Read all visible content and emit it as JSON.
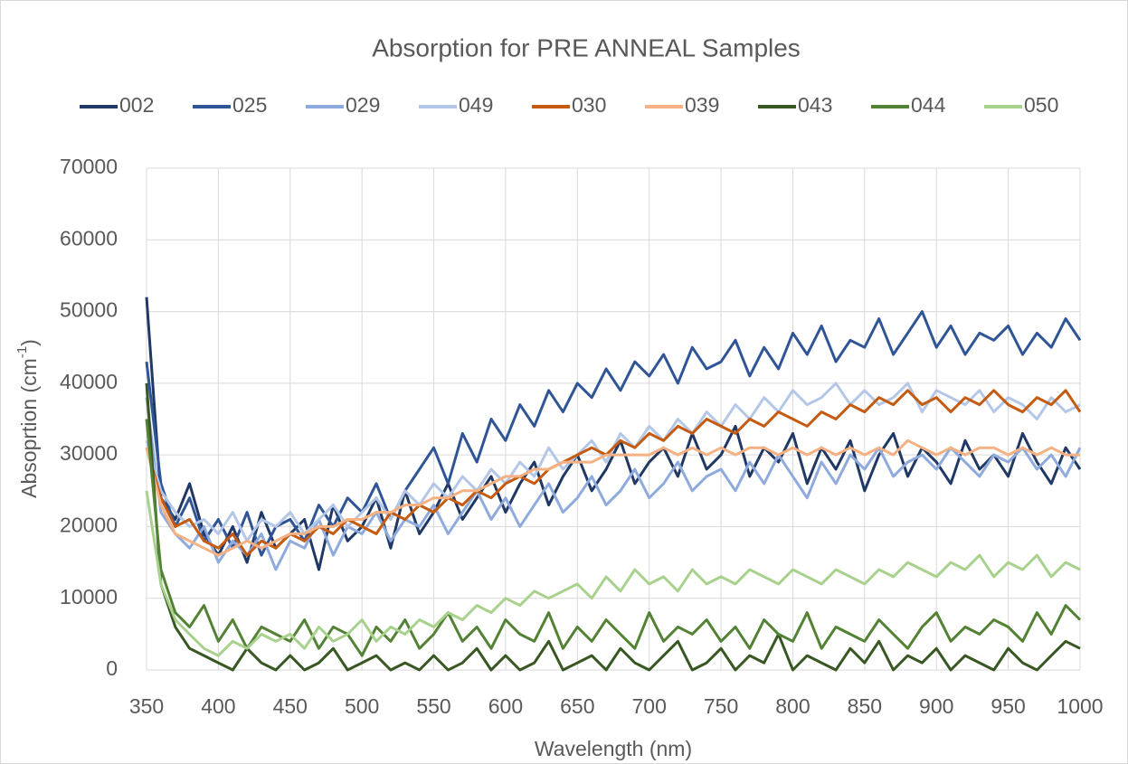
{
  "chart_data": {
    "type": "line",
    "title": "Absorption for PRE ANNEAL Samples",
    "x_label": "Wavelength (nm)",
    "y_label": {
      "text": "Absoprtion (cm",
      "superscript": "-1",
      "suffix": ")"
    },
    "xlim": [
      350,
      1000
    ],
    "xticks": [
      350,
      400,
      450,
      500,
      550,
      600,
      650,
      700,
      750,
      800,
      850,
      900,
      950,
      1000
    ],
    "ylim": [
      0,
      70000
    ],
    "yticks": [
      0,
      10000,
      20000,
      30000,
      40000,
      50000,
      60000,
      70000
    ],
    "grid": true,
    "legend": "top",
    "x": [
      350,
      360,
      370,
      380,
      390,
      400,
      410,
      420,
      430,
      440,
      450,
      460,
      470,
      480,
      490,
      500,
      510,
      520,
      530,
      540,
      550,
      560,
      570,
      580,
      590,
      600,
      610,
      620,
      630,
      640,
      650,
      660,
      670,
      680,
      690,
      700,
      710,
      720,
      730,
      740,
      750,
      760,
      770,
      780,
      790,
      800,
      810,
      820,
      830,
      840,
      850,
      860,
      870,
      880,
      890,
      900,
      910,
      920,
      930,
      940,
      950,
      960,
      970,
      980,
      990,
      1000
    ],
    "series": [
      {
        "name": "002",
        "color": "#203864",
        "values": [
          52000,
          24000,
          21000,
          26000,
          19000,
          16000,
          20000,
          15000,
          22000,
          17000,
          19000,
          21000,
          14000,
          23000,
          18000,
          20000,
          24000,
          17000,
          25000,
          19000,
          22000,
          26000,
          21000,
          24000,
          27000,
          22000,
          26000,
          29000,
          23000,
          27000,
          30000,
          25000,
          28000,
          32000,
          26000,
          29000,
          31000,
          27000,
          33000,
          28000,
          30000,
          34000,
          27000,
          31000,
          29000,
          33000,
          26000,
          31000,
          28000,
          32000,
          25000,
          30000,
          33000,
          27000,
          31000,
          29000,
          26000,
          32000,
          28000,
          30000,
          27000,
          33000,
          29000,
          26000,
          31000,
          28000
        ]
      },
      {
        "name": "025",
        "color": "#2f5597",
        "values": [
          43000,
          26000,
          20000,
          24000,
          18000,
          21000,
          17000,
          22000,
          16000,
          20000,
          21000,
          18000,
          23000,
          20000,
          24000,
          22000,
          26000,
          21000,
          25000,
          28000,
          31000,
          26000,
          33000,
          29000,
          35000,
          32000,
          37000,
          34000,
          39000,
          36000,
          40000,
          38000,
          42000,
          39000,
          43000,
          41000,
          44000,
          40000,
          45000,
          42000,
          43000,
          46000,
          41000,
          45000,
          42000,
          47000,
          44000,
          48000,
          43000,
          46000,
          45000,
          49000,
          44000,
          47000,
          50000,
          45000,
          48000,
          44000,
          47000,
          46000,
          48000,
          44000,
          47000,
          45000,
          49000,
          46000
        ]
      },
      {
        "name": "029",
        "color": "#8faadc",
        "values": [
          38000,
          22000,
          19000,
          17000,
          20000,
          15000,
          18000,
          16000,
          19000,
          14000,
          18000,
          17000,
          21000,
          16000,
          20000,
          19000,
          22000,
          18000,
          21000,
          20000,
          23000,
          19000,
          22000,
          25000,
          21000,
          24000,
          20000,
          23000,
          26000,
          22000,
          24000,
          27000,
          23000,
          25000,
          28000,
          24000,
          26000,
          29000,
          25000,
          27000,
          28000,
          25000,
          29000,
          26000,
          30000,
          27000,
          24000,
          29000,
          26000,
          30000,
          28000,
          31000,
          27000,
          29000,
          30000,
          28000,
          31000,
          29000,
          27000,
          30000,
          29000,
          31000,
          28000,
          30000,
          27000,
          31000
        ]
      },
      {
        "name": "049",
        "color": "#b4c7e7",
        "values": [
          32000,
          25000,
          22000,
          20000,
          21000,
          19000,
          22000,
          18000,
          21000,
          20000,
          22000,
          19000,
          21000,
          23000,
          20000,
          22000,
          24000,
          21000,
          25000,
          23000,
          26000,
          24000,
          27000,
          25000,
          28000,
          26000,
          29000,
          27000,
          31000,
          28000,
          30000,
          32000,
          29000,
          33000,
          31000,
          34000,
          32000,
          35000,
          33000,
          36000,
          34000,
          37000,
          35000,
          38000,
          36000,
          39000,
          37000,
          38000,
          40000,
          37000,
          39000,
          37000,
          38000,
          40000,
          36000,
          39000,
          38000,
          37000,
          39000,
          36000,
          38000,
          37000,
          35000,
          38000,
          36000,
          37000
        ]
      },
      {
        "name": "030",
        "color": "#c55a11",
        "values": [
          31000,
          24000,
          20000,
          21000,
          18000,
          17000,
          19000,
          16000,
          18000,
          17000,
          19000,
          18000,
          20000,
          19000,
          21000,
          20000,
          19000,
          22000,
          21000,
          23000,
          22000,
          24000,
          23000,
          25000,
          24000,
          26000,
          27000,
          26000,
          28000,
          29000,
          30000,
          31000,
          30000,
          32000,
          31000,
          33000,
          32000,
          34000,
          33000,
          35000,
          34000,
          33000,
          35000,
          34000,
          36000,
          35000,
          34000,
          36000,
          35000,
          37000,
          36000,
          38000,
          37000,
          39000,
          37000,
          38000,
          36000,
          38000,
          37000,
          39000,
          37000,
          36000,
          38000,
          37000,
          39000,
          36000
        ]
      },
      {
        "name": "039",
        "color": "#f4b183",
        "values": [
          31000,
          23000,
          19000,
          18000,
          17000,
          16000,
          17000,
          18000,
          17000,
          18000,
          19000,
          19000,
          20000,
          20000,
          21000,
          21000,
          22000,
          22000,
          23000,
          23000,
          24000,
          24000,
          25000,
          25000,
          26000,
          27000,
          27000,
          28000,
          28000,
          29000,
          29000,
          29000,
          30000,
          30000,
          30000,
          30000,
          31000,
          30000,
          31000,
          30000,
          31000,
          30000,
          31000,
          31000,
          30000,
          31000,
          30000,
          31000,
          30000,
          31000,
          30000,
          31000,
          30000,
          32000,
          31000,
          30000,
          31000,
          30000,
          31000,
          31000,
          30000,
          31000,
          30000,
          31000,
          30000,
          30000
        ]
      },
      {
        "name": "043",
        "color": "#385723",
        "values": [
          40000,
          12000,
          6000,
          3000,
          2000,
          1000,
          0,
          3000,
          1000,
          0,
          2000,
          0,
          1000,
          3000,
          0,
          1000,
          2000,
          0,
          1000,
          0,
          2000,
          0,
          1000,
          3000,
          0,
          2000,
          0,
          1000,
          4000,
          0,
          1000,
          2000,
          0,
          3000,
          1000,
          0,
          2000,
          4000,
          0,
          1000,
          3000,
          0,
          2000,
          1000,
          5000,
          0,
          2000,
          1000,
          0,
          3000,
          1000,
          4000,
          0,
          2000,
          1000,
          3000,
          0,
          2000,
          1000,
          0,
          3000,
          1000,
          0,
          2000,
          4000,
          3000
        ]
      },
      {
        "name": "044",
        "color": "#548235",
        "values": [
          35000,
          14000,
          8000,
          6000,
          9000,
          4000,
          7000,
          3000,
          6000,
          5000,
          4000,
          7000,
          3000,
          6000,
          5000,
          2000,
          6000,
          4000,
          7000,
          3000,
          5000,
          8000,
          4000,
          6000,
          3000,
          7000,
          5000,
          4000,
          8000,
          3000,
          6000,
          4000,
          7000,
          5000,
          3000,
          8000,
          4000,
          6000,
          5000,
          7000,
          4000,
          6000,
          3000,
          7000,
          5000,
          4000,
          8000,
          3000,
          6000,
          5000,
          4000,
          7000,
          5000,
          3000,
          6000,
          8000,
          4000,
          6000,
          5000,
          7000,
          6000,
          4000,
          8000,
          5000,
          9000,
          7000
        ]
      },
      {
        "name": "050",
        "color": "#a9d18e",
        "values": [
          25000,
          12000,
          7000,
          5000,
          3000,
          2000,
          4000,
          3000,
          5000,
          4000,
          5000,
          3000,
          6000,
          4000,
          5000,
          7000,
          4000,
          6000,
          5000,
          7000,
          6000,
          8000,
          7000,
          9000,
          8000,
          10000,
          9000,
          11000,
          10000,
          11000,
          12000,
          10000,
          13000,
          11000,
          14000,
          12000,
          13000,
          11000,
          14000,
          12000,
          13000,
          12000,
          14000,
          13000,
          12000,
          14000,
          13000,
          12000,
          14000,
          13000,
          12000,
          14000,
          13000,
          15000,
          14000,
          13000,
          15000,
          14000,
          16000,
          13000,
          15000,
          14000,
          16000,
          13000,
          15000,
          14000
        ]
      }
    ]
  }
}
